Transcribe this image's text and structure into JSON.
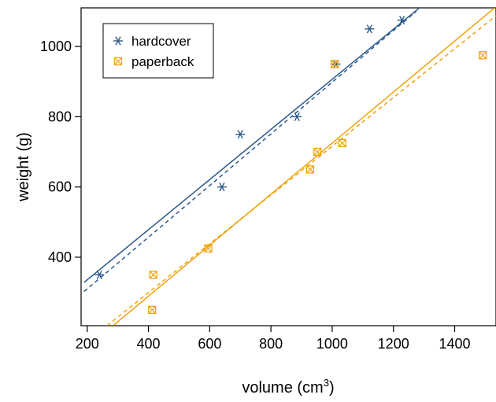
{
  "chart_data": {
    "type": "scatter",
    "xlabel": "volume (cm",
    "xlabel_superscript": "3",
    "xlabel_suffix": ")",
    "ylabel": "weight (g)",
    "xlim": [
      180,
      1535
    ],
    "ylim": [
      205,
      1110
    ],
    "xticks": [
      200,
      400,
      600,
      800,
      1000,
      1200,
      1400
    ],
    "yticks": [
      400,
      600,
      800,
      1000
    ],
    "legend_position": "top-left",
    "series": [
      {
        "name": "hardcover",
        "color": "#2c5a8c",
        "marker": "asterisk",
        "x": [
          240,
          640,
          700,
          885,
          1012,
          1122,
          1228
        ],
        "y": [
          350,
          600,
          750,
          800,
          950,
          1050,
          1075
        ],
        "fit_solid": [
          [
            190,
            328.5
          ],
          [
            1290,
            1113.5
          ]
        ],
        "fit_dashed": [
          [
            190,
            302.5
          ],
          [
            1275,
            1100.5
          ]
        ]
      },
      {
        "name": "paperback",
        "color": "#f2a20c",
        "marker": "boxed-x",
        "x": [
          412,
          416,
          595,
          928,
          952,
          1033,
          1008,
          1492
        ],
        "y": [
          250,
          350,
          425,
          650,
          700,
          725,
          950,
          975
        ],
        "fit_solid": [
          [
            285,
            205.5
          ],
          [
            1535,
            1113.5
          ]
        ],
        "fit_dashed": [
          [
            265,
            205.5
          ],
          [
            1535,
            1087.5
          ]
        ]
      }
    ]
  }
}
